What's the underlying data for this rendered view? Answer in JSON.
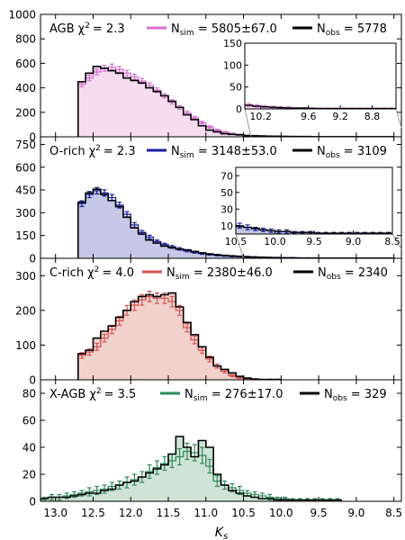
{
  "figure": {
    "xlabel_main": "K",
    "xlabel_sub": "s"
  },
  "chart_data": [
    {
      "type": "histogram",
      "panel": "AGB",
      "x_reversed": true,
      "xlim": [
        13.2,
        8.4
      ],
      "ylim": [
        0,
        1000
      ],
      "yticks": [
        0,
        200,
        400,
        600,
        800,
        1000
      ],
      "xtick_labels": [],
      "bin_edges": [
        12.7,
        12.6,
        12.5,
        12.4,
        12.3,
        12.2,
        12.1,
        12.0,
        11.9,
        11.8,
        11.7,
        11.6,
        11.5,
        11.4,
        11.3,
        11.2,
        11.1,
        11.0,
        10.9,
        10.8,
        10.7,
        10.6,
        10.5,
        10.4,
        10.3,
        10.2,
        10.1,
        10.0,
        9.9,
        9.8,
        9.7,
        9.6,
        9.5,
        9.4,
        9.3,
        9.2,
        9.1,
        9.0,
        8.9,
        8.8,
        8.7,
        8.6,
        8.5
      ],
      "sim": [
        430,
        480,
        530,
        560,
        570,
        550,
        520,
        490,
        455,
        420,
        380,
        335,
        285,
        240,
        195,
        155,
        115,
        80,
        55,
        38,
        26,
        18,
        12,
        9,
        7,
        5,
        4,
        3,
        3,
        2,
        2,
        2,
        1,
        1,
        1,
        1,
        1,
        1,
        1,
        1,
        1,
        1
      ],
      "sim_err": [
        21,
        22,
        23,
        24,
        24,
        23,
        23,
        22,
        21,
        20,
        19,
        18,
        17,
        15,
        14,
        12,
        11,
        9,
        7,
        6,
        5,
        4,
        3,
        3,
        3,
        2,
        2,
        2,
        2,
        1,
        1,
        1,
        1,
        1,
        1,
        1,
        1,
        1,
        1,
        1,
        1,
        1
      ],
      "obs": [
        450,
        520,
        575,
        560,
        540,
        520,
        480,
        460,
        440,
        400,
        370,
        335,
        290,
        240,
        180,
        140,
        90,
        55,
        40,
        25,
        20,
        16,
        10,
        8,
        6,
        5,
        4,
        3,
        2,
        2,
        2,
        1,
        1,
        1,
        1,
        1,
        1,
        1,
        1,
        1,
        1,
        1
      ],
      "fill": "#f5dcef",
      "sim_color": "#d96fd2",
      "obs_color": "#000000",
      "label": "AGB",
      "chi_label": "χ",
      "chi_value": "2.3",
      "n_sim": "5805±67.0",
      "n_obs": "5778",
      "inset": {
        "xlim": [
          10.4,
          8.5
        ],
        "ylim": [
          0,
          150
        ],
        "yticks": [
          0,
          50,
          100,
          150
        ],
        "xticks": [
          10.2,
          9.6,
          9.2,
          8.8
        ],
        "xtick_labels": [
          "10.2",
          "9.6",
          "9.2",
          "8.8"
        ]
      }
    },
    {
      "type": "histogram",
      "panel": "O-rich",
      "x_reversed": true,
      "xlim": [
        13.2,
        8.4
      ],
      "ylim": [
        0,
        800
      ],
      "yticks": [
        0,
        150,
        300,
        450,
        600,
        750
      ],
      "xtick_labels": [],
      "bin_edges": [
        12.7,
        12.6,
        12.5,
        12.4,
        12.3,
        12.2,
        12.1,
        12.0,
        11.9,
        11.8,
        11.7,
        11.6,
        11.5,
        11.4,
        11.3,
        11.2,
        11.1,
        11.0,
        10.9,
        10.8,
        10.7,
        10.6,
        10.5,
        10.4,
        10.3,
        10.2,
        10.1,
        10.0,
        9.9,
        9.8,
        9.7,
        9.6,
        9.5,
        9.4,
        9.3,
        9.2,
        9.1,
        9.0,
        8.9,
        8.8,
        8.7,
        8.6,
        8.5
      ],
      "sim": [
        360,
        420,
        445,
        430,
        400,
        350,
        290,
        220,
        170,
        140,
        110,
        90,
        75,
        62,
        50,
        40,
        32,
        26,
        21,
        17,
        14,
        12,
        10,
        8,
        6,
        5,
        4,
        3,
        3,
        2,
        2,
        2,
        1,
        1,
        1,
        1,
        1,
        1,
        1,
        1,
        1,
        1
      ],
      "sim_err": [
        19,
        20,
        21,
        21,
        20,
        19,
        17,
        15,
        13,
        12,
        10,
        9,
        9,
        8,
        7,
        6,
        6,
        5,
        5,
        4,
        4,
        3,
        3,
        3,
        2,
        2,
        2,
        2,
        2,
        1,
        1,
        1,
        1,
        1,
        1,
        1,
        1,
        1,
        1,
        1,
        1,
        1
      ],
      "obs": [
        370,
        430,
        455,
        420,
        380,
        340,
        270,
        200,
        160,
        120,
        100,
        80,
        70,
        60,
        55,
        45,
        35,
        28,
        23,
        18,
        15,
        12,
        9,
        8,
        7,
        5,
        4,
        3,
        3,
        2,
        2,
        2,
        1,
        1,
        1,
        1,
        1,
        1,
        1,
        1,
        1,
        1
      ],
      "fill": "#c5c8e6",
      "sim_color": "#17209c",
      "obs_color": "#000000",
      "label": "O-rich",
      "chi_label": "χ",
      "chi_value": "2.3",
      "n_sim": "3148±53.0",
      "n_obs": "3109",
      "inset": {
        "xlim": [
          10.5,
          8.5
        ],
        "ylim": [
          0,
          80
        ],
        "yticks": [
          10,
          30,
          50,
          70
        ],
        "xticks": [
          10.5,
          10.0,
          9.5,
          9.0,
          8.5
        ],
        "xtick_labels": [
          "10.5",
          "10.0",
          "9.5",
          "9.0",
          "8.5"
        ]
      }
    },
    {
      "type": "histogram",
      "panel": "C-rich",
      "x_reversed": true,
      "xlim": [
        13.2,
        8.4
      ],
      "ylim": [
        0,
        350
      ],
      "yticks": [
        0,
        100,
        200,
        300
      ],
      "xtick_labels": [],
      "bin_edges": [
        12.7,
        12.6,
        12.5,
        12.4,
        12.3,
        12.2,
        12.1,
        12.0,
        11.9,
        11.8,
        11.7,
        11.6,
        11.5,
        11.4,
        11.3,
        11.2,
        11.1,
        11.0,
        10.9,
        10.8,
        10.7,
        10.6,
        10.5,
        10.4,
        10.3,
        10.2,
        10.1,
        10.0
      ],
      "sim": [
        70,
        80,
        95,
        120,
        145,
        170,
        200,
        215,
        230,
        240,
        235,
        235,
        225,
        200,
        150,
        115,
        85,
        60,
        40,
        25,
        12,
        6,
        3,
        2,
        1,
        1,
        1
      ],
      "sim_err": [
        8,
        9,
        10,
        11,
        12,
        13,
        14,
        15,
        15,
        15,
        15,
        15,
        15,
        14,
        12,
        11,
        9,
        8,
        6,
        5,
        3,
        2,
        2,
        1,
        1,
        1,
        1
      ],
      "obs": [
        75,
        85,
        120,
        140,
        155,
        180,
        200,
        225,
        240,
        245,
        240,
        245,
        250,
        210,
        165,
        130,
        95,
        65,
        40,
        30,
        20,
        10,
        5,
        2,
        1,
        1,
        1
      ],
      "fill": "#f1d1cc",
      "sim_color": "#d9534f",
      "obs_color": "#000000",
      "label": "C-rich",
      "chi_label": "χ",
      "chi_value": "4.0",
      "n_sim": "2380±46.0",
      "n_obs": "2340"
    },
    {
      "type": "histogram",
      "panel": "X-AGB",
      "x_reversed": true,
      "xlim": [
        13.2,
        8.4
      ],
      "ylim": [
        0,
        90
      ],
      "yticks": [
        0,
        20,
        40,
        60,
        80
      ],
      "xticks": [
        13.0,
        12.5,
        12.0,
        11.5,
        11.0,
        10.5,
        10.0,
        9.5,
        9.0,
        8.5
      ],
      "xtick_labels": [
        "13.0",
        "12.5",
        "12.0",
        "11.5",
        "11.0",
        "10.5",
        "10.0",
        "9.5",
        "9.0",
        "8.5"
      ],
      "bin_edges": [
        13.2,
        13.1,
        13.0,
        12.9,
        12.8,
        12.7,
        12.6,
        12.5,
        12.4,
        12.3,
        12.2,
        12.1,
        12.0,
        11.9,
        11.8,
        11.7,
        11.6,
        11.5,
        11.4,
        11.3,
        11.2,
        11.1,
        11.0,
        10.9,
        10.8,
        10.7,
        10.6,
        10.5,
        10.4,
        10.3,
        10.2,
        10.1,
        10.0,
        9.9,
        9.8,
        9.7,
        9.6,
        9.5,
        9.4,
        9.3,
        9.2
      ],
      "sim": [
        2,
        3,
        3,
        4,
        5,
        6,
        7,
        8,
        9,
        11,
        12,
        14,
        16,
        18,
        22,
        25,
        28,
        30,
        33,
        37,
        36,
        34,
        26,
        15,
        12,
        10,
        8,
        6,
        5,
        4,
        3,
        2,
        2,
        1,
        1,
        1,
        1,
        1,
        1,
        1
      ],
      "sim_err": [
        1,
        2,
        2,
        2,
        2,
        2,
        3,
        3,
        3,
        3,
        3,
        4,
        4,
        4,
        5,
        5,
        5,
        5,
        6,
        6,
        6,
        6,
        5,
        4,
        3,
        3,
        3,
        2,
        2,
        2,
        2,
        1,
        1,
        1,
        1,
        1,
        1,
        1,
        1,
        1
      ],
      "obs": [
        2,
        3,
        3,
        3,
        4,
        5,
        6,
        6,
        8,
        9,
        12,
        14,
        15,
        18,
        21,
        24,
        27,
        35,
        48,
        40,
        33,
        45,
        40,
        20,
        12,
        8,
        6,
        4,
        3,
        2,
        2,
        1,
        1,
        1,
        1,
        1,
        1,
        1,
        1,
        1
      ],
      "fill": "#cfe4d6",
      "sim_color": "#2e8b57",
      "obs_color": "#000000",
      "label": "X-AGB",
      "chi_label": "χ",
      "chi_value": "3.5",
      "n_sim": "276±17.0",
      "n_obs": "329"
    }
  ]
}
